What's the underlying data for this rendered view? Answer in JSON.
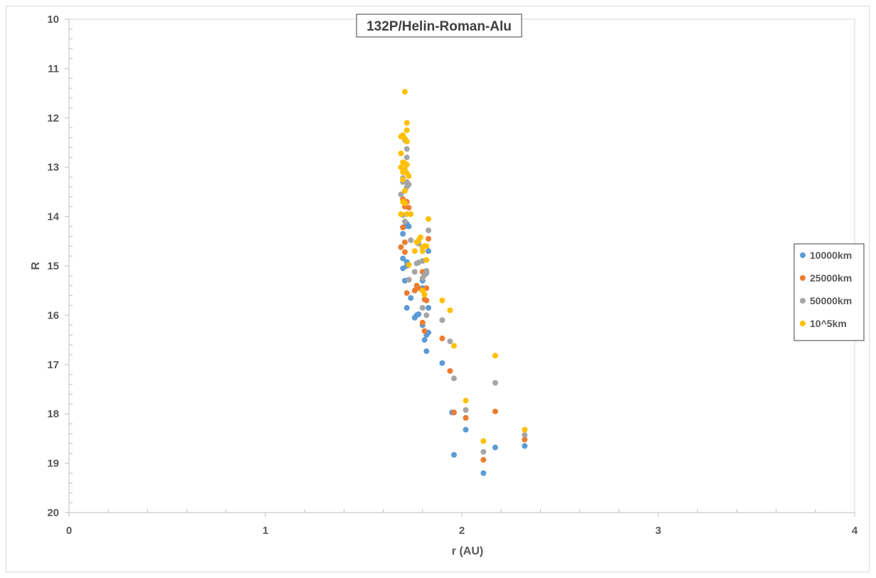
{
  "chart_data": {
    "type": "scatter",
    "title": "132P/Helin-Roman-Alu",
    "xlabel": "r (AU)",
    "ylabel": "R",
    "xlim": [
      0,
      4
    ],
    "ylim": [
      10,
      20
    ],
    "y_inverted": true,
    "x_ticks": [
      "0",
      "1",
      "2",
      "3",
      "4"
    ],
    "y_ticks": [
      "10",
      "11",
      "12",
      "13",
      "14",
      "15",
      "16",
      "17",
      "18",
      "19",
      "20"
    ],
    "grid": false,
    "legend_position": "right",
    "series": [
      {
        "name": "10000km",
        "color": "#5b9bd5",
        "points": [
          [
            1.7,
            14.35
          ],
          [
            1.71,
            14.2
          ],
          [
            1.7,
            14.85
          ],
          [
            1.72,
            14.92
          ],
          [
            1.7,
            15.05
          ],
          [
            1.72,
            15.0
          ],
          [
            1.71,
            15.3
          ],
          [
            1.73,
            15.28
          ],
          [
            1.72,
            15.85
          ],
          [
            1.74,
            15.65
          ],
          [
            1.76,
            16.05
          ],
          [
            1.77,
            16.0
          ],
          [
            1.78,
            15.98
          ],
          [
            1.8,
            15.3
          ],
          [
            1.8,
            15.45
          ],
          [
            1.8,
            16.2
          ],
          [
            1.81,
            16.5
          ],
          [
            1.82,
            16.4
          ],
          [
            1.83,
            16.35
          ],
          [
            1.82,
            16.73
          ],
          [
            1.83,
            15.85
          ],
          [
            1.83,
            14.7
          ],
          [
            1.72,
            14.15
          ],
          [
            1.73,
            14.2
          ],
          [
            1.9,
            16.97
          ],
          [
            1.95,
            17.97
          ],
          [
            1.96,
            18.83
          ],
          [
            2.02,
            18.32
          ],
          [
            2.11,
            19.2
          ],
          [
            2.17,
            18.68
          ],
          [
            2.32,
            18.65
          ]
        ]
      },
      {
        "name": "25000km",
        "color": "#ed7d31",
        "points": [
          [
            1.7,
            13.65
          ],
          [
            1.71,
            13.8
          ],
          [
            1.7,
            14.22
          ],
          [
            1.71,
            14.52
          ],
          [
            1.69,
            14.62
          ],
          [
            1.71,
            14.72
          ],
          [
            1.73,
            14.98
          ],
          [
            1.72,
            15.55
          ],
          [
            1.72,
            13.7
          ],
          [
            1.73,
            13.82
          ],
          [
            1.76,
            15.5
          ],
          [
            1.77,
            15.4
          ],
          [
            1.78,
            15.45
          ],
          [
            1.8,
            15.12
          ],
          [
            1.8,
            15.5
          ],
          [
            1.81,
            15.68
          ],
          [
            1.8,
            16.15
          ],
          [
            1.81,
            16.32
          ],
          [
            1.82,
            15.7
          ],
          [
            1.82,
            15.45
          ],
          [
            1.83,
            14.45
          ],
          [
            1.9,
            16.47
          ],
          [
            1.94,
            17.13
          ],
          [
            1.96,
            17.97
          ],
          [
            2.02,
            18.08
          ],
          [
            2.11,
            18.93
          ],
          [
            2.17,
            17.95
          ],
          [
            2.32,
            18.52
          ]
        ]
      },
      {
        "name": "50000km",
        "color": "#a5a5a5",
        "points": [
          [
            1.7,
            13.3
          ],
          [
            1.69,
            13.55
          ],
          [
            1.7,
            13.97
          ],
          [
            1.71,
            14.1
          ],
          [
            1.72,
            13.4
          ],
          [
            1.72,
            13.3
          ],
          [
            1.73,
            13.35
          ],
          [
            1.72,
            12.95
          ],
          [
            1.72,
            12.8
          ],
          [
            1.72,
            12.63
          ],
          [
            1.71,
            12.45
          ],
          [
            1.7,
            13.22
          ],
          [
            1.74,
            14.48
          ],
          [
            1.76,
            15.12
          ],
          [
            1.77,
            14.95
          ],
          [
            1.78,
            14.93
          ],
          [
            1.78,
            14.55
          ],
          [
            1.8,
            14.9
          ],
          [
            1.8,
            15.25
          ],
          [
            1.8,
            15.85
          ],
          [
            1.81,
            15.18
          ],
          [
            1.82,
            15.15
          ],
          [
            1.82,
            16.0
          ],
          [
            1.83,
            14.28
          ],
          [
            1.82,
            15.1
          ],
          [
            1.73,
            15.28
          ],
          [
            1.9,
            16.1
          ],
          [
            1.94,
            16.53
          ],
          [
            1.96,
            17.28
          ],
          [
            2.02,
            17.92
          ],
          [
            2.11,
            18.77
          ],
          [
            2.17,
            17.37
          ],
          [
            2.32,
            18.43
          ]
        ]
      },
      {
        "name": "10^5km",
        "color": "#ffc000",
        "points": [
          [
            1.71,
            11.47
          ],
          [
            1.72,
            12.1
          ],
          [
            1.72,
            12.25
          ],
          [
            1.69,
            12.38
          ],
          [
            1.7,
            12.35
          ],
          [
            1.71,
            12.42
          ],
          [
            1.72,
            12.48
          ],
          [
            1.69,
            12.72
          ],
          [
            1.7,
            12.9
          ],
          [
            1.71,
            12.92
          ],
          [
            1.72,
            12.95
          ],
          [
            1.69,
            13.0
          ],
          [
            1.7,
            13.1
          ],
          [
            1.71,
            13.05
          ],
          [
            1.72,
            13.12
          ],
          [
            1.73,
            13.18
          ],
          [
            1.7,
            13.25
          ],
          [
            1.71,
            13.48
          ],
          [
            1.7,
            13.7
          ],
          [
            1.71,
            13.73
          ],
          [
            1.72,
            13.95
          ],
          [
            1.74,
            13.95
          ],
          [
            1.69,
            13.95
          ],
          [
            1.73,
            14.98
          ],
          [
            1.76,
            14.7
          ],
          [
            1.77,
            14.52
          ],
          [
            1.78,
            14.48
          ],
          [
            1.79,
            14.42
          ],
          [
            1.8,
            14.7
          ],
          [
            1.8,
            14.62
          ],
          [
            1.81,
            14.6
          ],
          [
            1.82,
            14.6
          ],
          [
            1.83,
            14.05
          ],
          [
            1.82,
            14.88
          ],
          [
            1.8,
            15.5
          ],
          [
            1.81,
            15.58
          ],
          [
            1.9,
            15.7
          ],
          [
            1.94,
            15.9
          ],
          [
            1.96,
            16.62
          ],
          [
            2.02,
            17.73
          ],
          [
            2.11,
            18.55
          ],
          [
            2.17,
            16.82
          ],
          [
            2.32,
            18.32
          ]
        ]
      }
    ]
  }
}
